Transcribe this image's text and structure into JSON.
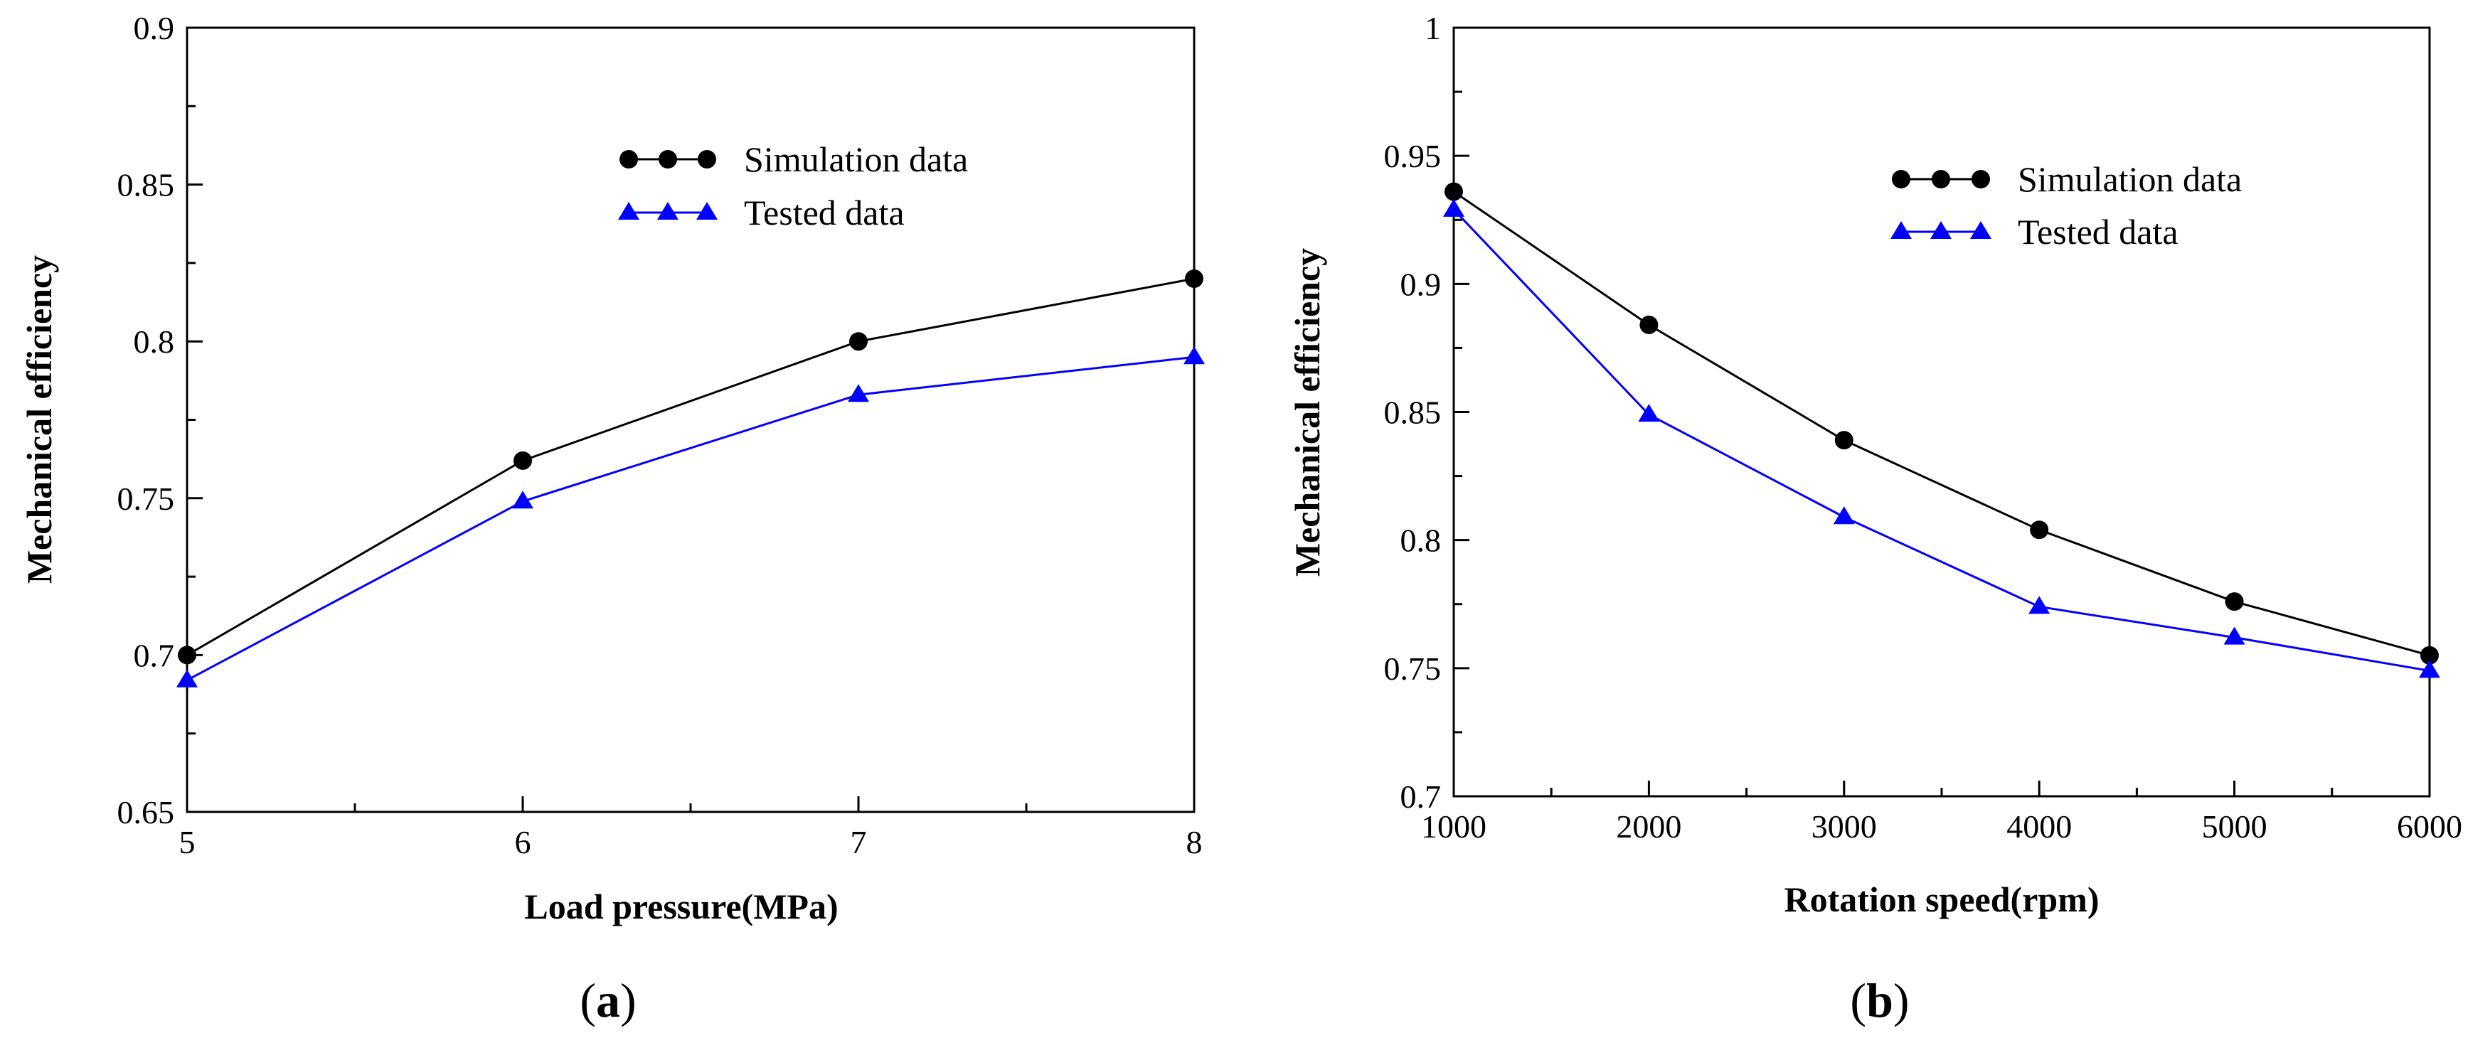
{
  "chart_data": [
    {
      "type": "line",
      "panel": "a",
      "panel_label": {
        "open": "(",
        "letter": "a",
        "close": ")"
      },
      "xlabel": "Load pressure(MPa)",
      "ylabel": "Mechanical efficiency",
      "xlim": [
        5,
        8
      ],
      "ylim": [
        0.65,
        0.9
      ],
      "xticks": [
        5,
        6,
        7,
        8
      ],
      "xtick_labels": [
        "5",
        "6",
        "7",
        "8"
      ],
      "xminor": [
        5.5,
        6.5,
        7.5
      ],
      "yticks": [
        0.65,
        0.7,
        0.75,
        0.8,
        0.85,
        0.9
      ],
      "ytick_labels": [
        "0.65",
        "0.7",
        "0.75",
        "0.8",
        "0.85",
        "0.9"
      ],
      "yminor": [
        0.675,
        0.725,
        0.775,
        0.825,
        0.875
      ],
      "legend_position": "top-right",
      "series": [
        {
          "name": "Simulation data",
          "color": "#000000",
          "marker": "circle",
          "x": [
            5,
            6,
            7,
            8
          ],
          "values": [
            0.7,
            0.762,
            0.8,
            0.82
          ]
        },
        {
          "name": "Tested data",
          "color": "#0000ff",
          "marker": "triangle",
          "x": [
            5,
            6,
            7,
            8
          ],
          "values": [
            0.692,
            0.749,
            0.783,
            0.795
          ]
        }
      ]
    },
    {
      "type": "line",
      "panel": "b",
      "panel_label": {
        "open": "(",
        "letter": "b",
        "close": ")"
      },
      "xlabel": "Rotation speed(rpm)",
      "ylabel": "Mechanical efficiency",
      "xlim": [
        1000,
        6000
      ],
      "ylim": [
        0.7,
        1.0
      ],
      "xticks": [
        1000,
        2000,
        3000,
        4000,
        5000,
        6000
      ],
      "xtick_labels": [
        "1000",
        "2000",
        "3000",
        "4000",
        "5000",
        "6000"
      ],
      "xminor": [
        1500,
        2500,
        3500,
        4500,
        5500
      ],
      "yticks": [
        0.7,
        0.75,
        0.8,
        0.85,
        0.9,
        0.95,
        1.0
      ],
      "ytick_labels": [
        "0.7",
        "0.75",
        "0.8",
        "0.85",
        "0.9",
        "0.95",
        "1"
      ],
      "yminor": [
        0.725,
        0.775,
        0.825,
        0.875,
        0.925,
        0.975
      ],
      "legend_position": "top-right",
      "series": [
        {
          "name": "Simulation data",
          "color": "#000000",
          "marker": "circle",
          "x": [
            1000,
            2000,
            3000,
            4000,
            5000,
            6000
          ],
          "values": [
            0.936,
            0.884,
            0.839,
            0.804,
            0.776,
            0.755
          ]
        },
        {
          "name": "Tested data",
          "color": "#0000ff",
          "marker": "triangle",
          "x": [
            1000,
            2000,
            3000,
            4000,
            5000,
            6000
          ],
          "values": [
            0.929,
            0.849,
            0.809,
            0.774,
            0.762,
            0.749
          ]
        }
      ]
    }
  ]
}
